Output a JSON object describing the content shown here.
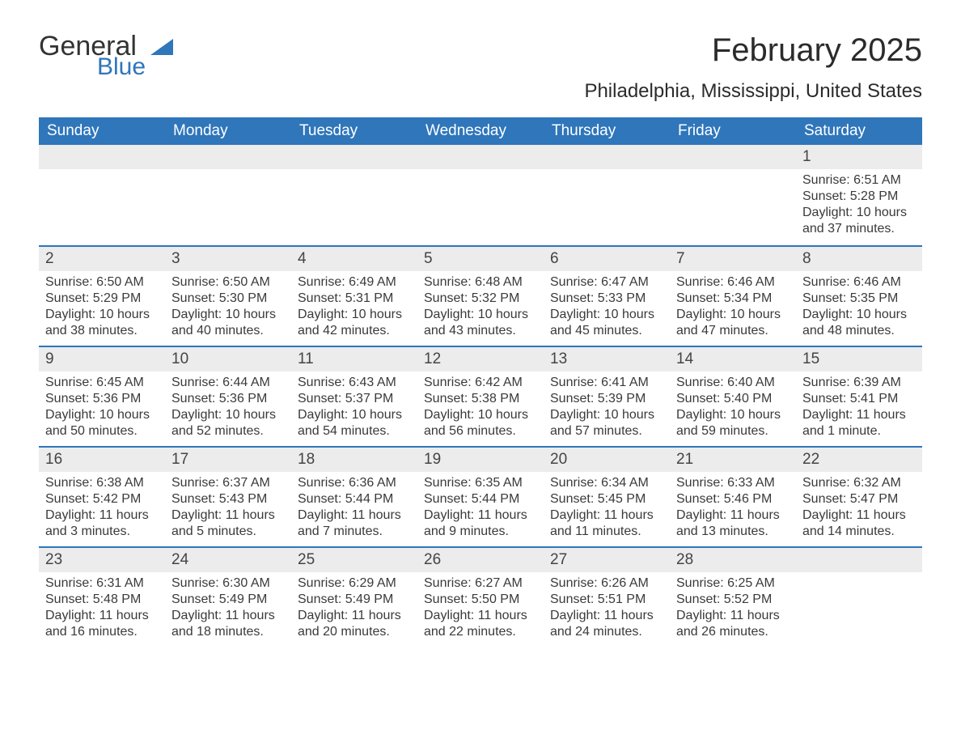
{
  "logo": {
    "general": "General",
    "blue": "Blue",
    "sail_color": "#2f76bb"
  },
  "title": "February 2025",
  "location": "Philadelphia, Mississippi, United States",
  "colors": {
    "header_bg": "#2f76bb",
    "header_text": "#ffffff",
    "daynum_bg": "#ececec",
    "week_border": "#2f76bb",
    "body_text": "#3a3a3a",
    "page_bg": "#ffffff"
  },
  "fonts": {
    "family": "Segoe UI, Arial, sans-serif",
    "title_size_pt": 30,
    "location_size_pt": 18,
    "dow_size_pt": 14,
    "daynum_size_pt": 14,
    "detail_size_pt": 12
  },
  "days_of_week": [
    "Sunday",
    "Monday",
    "Tuesday",
    "Wednesday",
    "Thursday",
    "Friday",
    "Saturday"
  ],
  "weeks": [
    [
      {
        "blank": true
      },
      {
        "blank": true
      },
      {
        "blank": true
      },
      {
        "blank": true
      },
      {
        "blank": true
      },
      {
        "blank": true
      },
      {
        "n": "1",
        "sunrise": "Sunrise: 6:51 AM",
        "sunset": "Sunset: 5:28 PM",
        "daylight": "Daylight: 10 hours and 37 minutes."
      }
    ],
    [
      {
        "n": "2",
        "sunrise": "Sunrise: 6:50 AM",
        "sunset": "Sunset: 5:29 PM",
        "daylight": "Daylight: 10 hours and 38 minutes."
      },
      {
        "n": "3",
        "sunrise": "Sunrise: 6:50 AM",
        "sunset": "Sunset: 5:30 PM",
        "daylight": "Daylight: 10 hours and 40 minutes."
      },
      {
        "n": "4",
        "sunrise": "Sunrise: 6:49 AM",
        "sunset": "Sunset: 5:31 PM",
        "daylight": "Daylight: 10 hours and 42 minutes."
      },
      {
        "n": "5",
        "sunrise": "Sunrise: 6:48 AM",
        "sunset": "Sunset: 5:32 PM",
        "daylight": "Daylight: 10 hours and 43 minutes."
      },
      {
        "n": "6",
        "sunrise": "Sunrise: 6:47 AM",
        "sunset": "Sunset: 5:33 PM",
        "daylight": "Daylight: 10 hours and 45 minutes."
      },
      {
        "n": "7",
        "sunrise": "Sunrise: 6:46 AM",
        "sunset": "Sunset: 5:34 PM",
        "daylight": "Daylight: 10 hours and 47 minutes."
      },
      {
        "n": "8",
        "sunrise": "Sunrise: 6:46 AM",
        "sunset": "Sunset: 5:35 PM",
        "daylight": "Daylight: 10 hours and 48 minutes."
      }
    ],
    [
      {
        "n": "9",
        "sunrise": "Sunrise: 6:45 AM",
        "sunset": "Sunset: 5:36 PM",
        "daylight": "Daylight: 10 hours and 50 minutes."
      },
      {
        "n": "10",
        "sunrise": "Sunrise: 6:44 AM",
        "sunset": "Sunset: 5:36 PM",
        "daylight": "Daylight: 10 hours and 52 minutes."
      },
      {
        "n": "11",
        "sunrise": "Sunrise: 6:43 AM",
        "sunset": "Sunset: 5:37 PM",
        "daylight": "Daylight: 10 hours and 54 minutes."
      },
      {
        "n": "12",
        "sunrise": "Sunrise: 6:42 AM",
        "sunset": "Sunset: 5:38 PM",
        "daylight": "Daylight: 10 hours and 56 minutes."
      },
      {
        "n": "13",
        "sunrise": "Sunrise: 6:41 AM",
        "sunset": "Sunset: 5:39 PM",
        "daylight": "Daylight: 10 hours and 57 minutes."
      },
      {
        "n": "14",
        "sunrise": "Sunrise: 6:40 AM",
        "sunset": "Sunset: 5:40 PM",
        "daylight": "Daylight: 10 hours and 59 minutes."
      },
      {
        "n": "15",
        "sunrise": "Sunrise: 6:39 AM",
        "sunset": "Sunset: 5:41 PM",
        "daylight": "Daylight: 11 hours and 1 minute."
      }
    ],
    [
      {
        "n": "16",
        "sunrise": "Sunrise: 6:38 AM",
        "sunset": "Sunset: 5:42 PM",
        "daylight": "Daylight: 11 hours and 3 minutes."
      },
      {
        "n": "17",
        "sunrise": "Sunrise: 6:37 AM",
        "sunset": "Sunset: 5:43 PM",
        "daylight": "Daylight: 11 hours and 5 minutes."
      },
      {
        "n": "18",
        "sunrise": "Sunrise: 6:36 AM",
        "sunset": "Sunset: 5:44 PM",
        "daylight": "Daylight: 11 hours and 7 minutes."
      },
      {
        "n": "19",
        "sunrise": "Sunrise: 6:35 AM",
        "sunset": "Sunset: 5:44 PM",
        "daylight": "Daylight: 11 hours and 9 minutes."
      },
      {
        "n": "20",
        "sunrise": "Sunrise: 6:34 AM",
        "sunset": "Sunset: 5:45 PM",
        "daylight": "Daylight: 11 hours and 11 minutes."
      },
      {
        "n": "21",
        "sunrise": "Sunrise: 6:33 AM",
        "sunset": "Sunset: 5:46 PM",
        "daylight": "Daylight: 11 hours and 13 minutes."
      },
      {
        "n": "22",
        "sunrise": "Sunrise: 6:32 AM",
        "sunset": "Sunset: 5:47 PM",
        "daylight": "Daylight: 11 hours and 14 minutes."
      }
    ],
    [
      {
        "n": "23",
        "sunrise": "Sunrise: 6:31 AM",
        "sunset": "Sunset: 5:48 PM",
        "daylight": "Daylight: 11 hours and 16 minutes."
      },
      {
        "n": "24",
        "sunrise": "Sunrise: 6:30 AM",
        "sunset": "Sunset: 5:49 PM",
        "daylight": "Daylight: 11 hours and 18 minutes."
      },
      {
        "n": "25",
        "sunrise": "Sunrise: 6:29 AM",
        "sunset": "Sunset: 5:49 PM",
        "daylight": "Daylight: 11 hours and 20 minutes."
      },
      {
        "n": "26",
        "sunrise": "Sunrise: 6:27 AM",
        "sunset": "Sunset: 5:50 PM",
        "daylight": "Daylight: 11 hours and 22 minutes."
      },
      {
        "n": "27",
        "sunrise": "Sunrise: 6:26 AM",
        "sunset": "Sunset: 5:51 PM",
        "daylight": "Daylight: 11 hours and 24 minutes."
      },
      {
        "n": "28",
        "sunrise": "Sunrise: 6:25 AM",
        "sunset": "Sunset: 5:52 PM",
        "daylight": "Daylight: 11 hours and 26 minutes."
      },
      {
        "blank": true
      }
    ]
  ]
}
